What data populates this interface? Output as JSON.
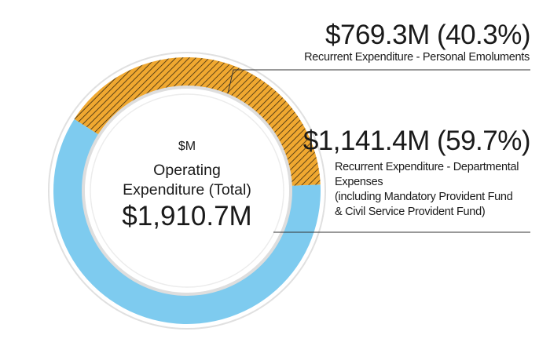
{
  "chart_data": {
    "type": "pie",
    "unit_label": "$M",
    "center_title_line1": "Operating",
    "center_title_line2": "Expenditure (Total)",
    "center_total": "$1,910.7M",
    "total": 1910.7,
    "slices": [
      {
        "value": 769.3,
        "percent": 40.3,
        "value_label": "$769.3M (40.3%)",
        "desc_lines": [
          "Recurrent Expenditure - Personal Emoluments"
        ],
        "color": "#f0a830",
        "pattern": "hatched"
      },
      {
        "value": 1141.4,
        "percent": 59.7,
        "value_label": "$1,141.4M (59.7%)",
        "desc_lines": [
          "Recurrent Expenditure - Departmental",
          "Expenses",
          "(including Mandatory Provident Fund",
          "& Civil Service Provident Fund)"
        ],
        "color": "#7ecbef",
        "pattern": "solid"
      }
    ]
  },
  "colors": {
    "ring_outline": "#e0e0e0",
    "hatch": "#3a2a10",
    "leader_line": "#333333"
  }
}
